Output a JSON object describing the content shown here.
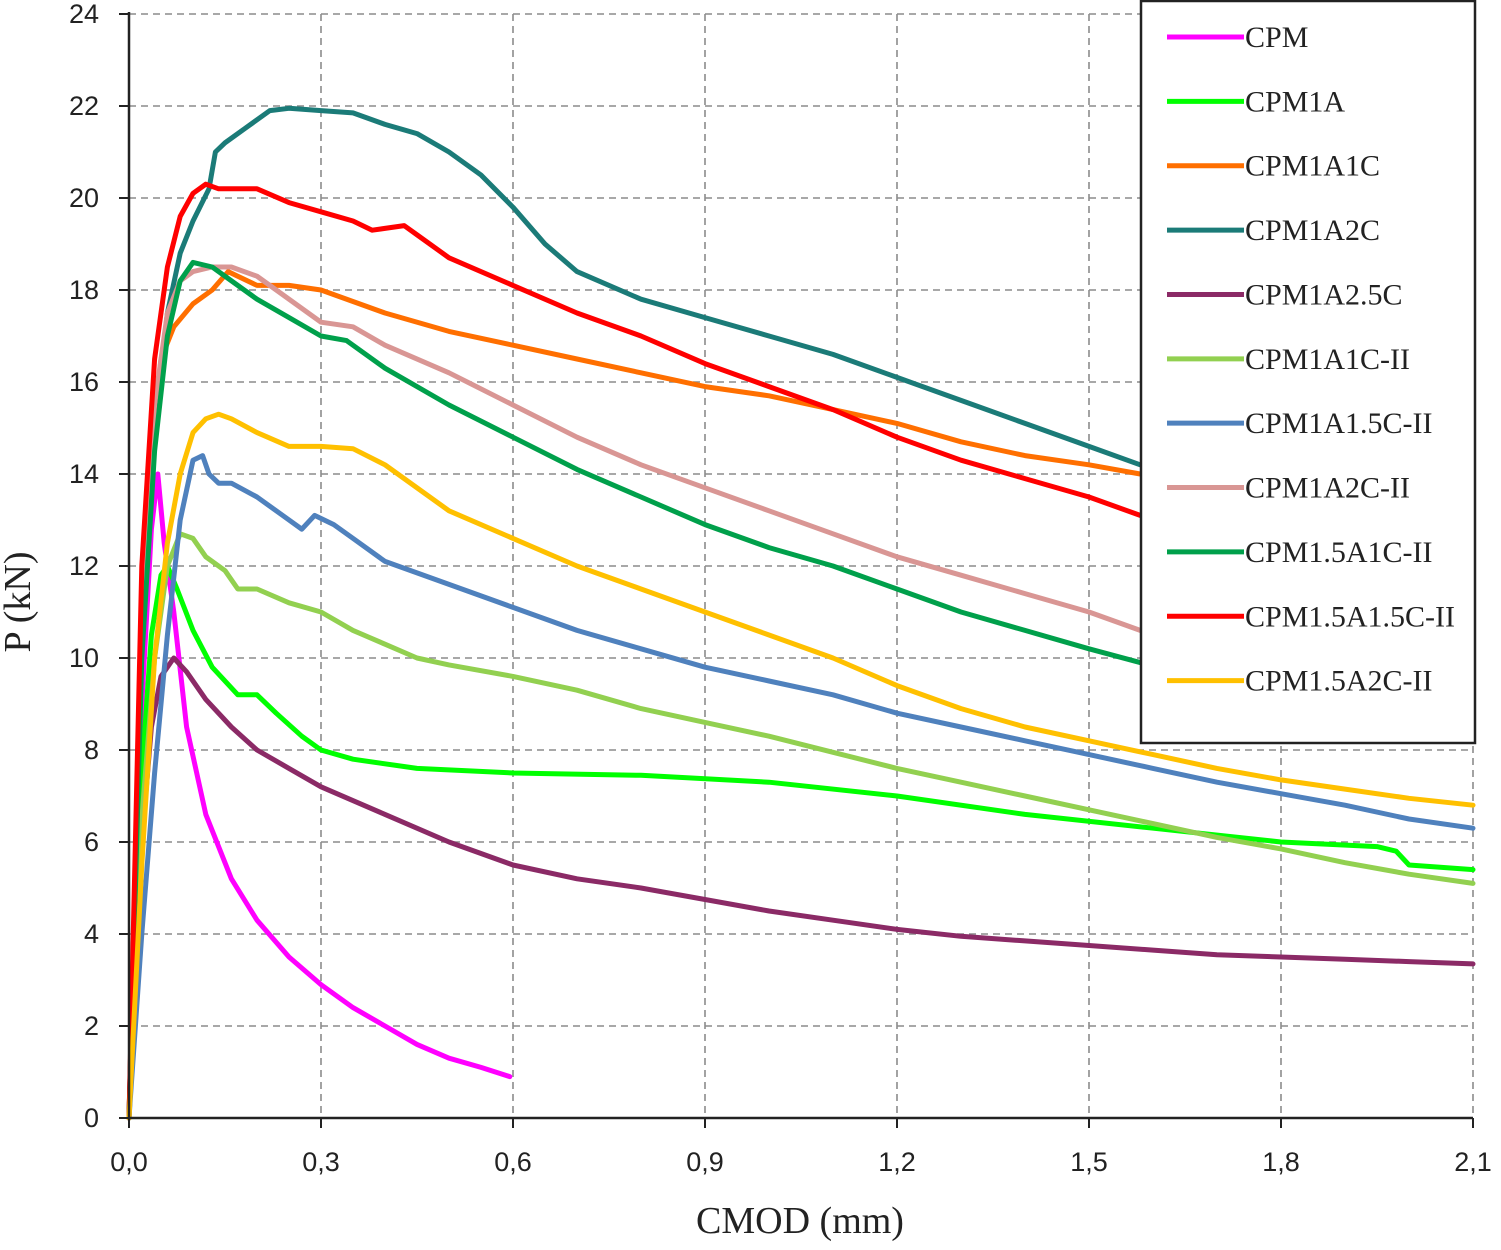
{
  "chart_data": {
    "type": "line",
    "xlabel": "CMOD  (mm)",
    "ylabel": "P (kN)",
    "xlim": [
      0,
      2.1
    ],
    "ylim": [
      0,
      24
    ],
    "x_ticks": [
      "0,0",
      "0,3",
      "0,6",
      "0,9",
      "1,2",
      "1,5",
      "1,8",
      "2,1"
    ],
    "x_tick_values": [
      0,
      0.3,
      0.6,
      0.9,
      1.2,
      1.5,
      1.8,
      2.1
    ],
    "y_ticks": [
      "0",
      "2",
      "4",
      "6",
      "8",
      "10",
      "12",
      "14",
      "16",
      "18",
      "20",
      "22",
      "24"
    ],
    "y_tick_values": [
      0,
      2,
      4,
      6,
      8,
      10,
      12,
      14,
      16,
      18,
      20,
      22,
      24
    ],
    "grid": true,
    "legend_position": "top-right",
    "series": [
      {
        "name": "CPM",
        "color": "#ff00ff",
        "points": [
          [
            0,
            0
          ],
          [
            0.02,
            9
          ],
          [
            0.035,
            12.8
          ],
          [
            0.045,
            14
          ],
          [
            0.055,
            12.5
          ],
          [
            0.07,
            11
          ],
          [
            0.09,
            8.5
          ],
          [
            0.12,
            6.6
          ],
          [
            0.16,
            5.2
          ],
          [
            0.2,
            4.3
          ],
          [
            0.25,
            3.5
          ],
          [
            0.3,
            2.9
          ],
          [
            0.35,
            2.4
          ],
          [
            0.4,
            2
          ],
          [
            0.45,
            1.6
          ],
          [
            0.5,
            1.3
          ],
          [
            0.55,
            1.1
          ],
          [
            0.595,
            0.9
          ]
        ]
      },
      {
        "name": "CPM1A",
        "color": "#00ff00",
        "points": [
          [
            0,
            0
          ],
          [
            0.02,
            7.5
          ],
          [
            0.035,
            10.5
          ],
          [
            0.05,
            11.8
          ],
          [
            0.06,
            12
          ],
          [
            0.075,
            11.5
          ],
          [
            0.1,
            10.6
          ],
          [
            0.13,
            9.8
          ],
          [
            0.17,
            9.2
          ],
          [
            0.2,
            9.2
          ],
          [
            0.23,
            8.8
          ],
          [
            0.27,
            8.3
          ],
          [
            0.3,
            8
          ],
          [
            0.35,
            7.8
          ],
          [
            0.45,
            7.6
          ],
          [
            0.6,
            7.5
          ],
          [
            0.8,
            7.45
          ],
          [
            1.0,
            7.3
          ],
          [
            1.2,
            7
          ],
          [
            1.4,
            6.6
          ],
          [
            1.6,
            6.3
          ],
          [
            1.8,
            6
          ],
          [
            1.95,
            5.9
          ],
          [
            1.98,
            5.8
          ],
          [
            2.0,
            5.5
          ],
          [
            2.1,
            5.4
          ]
        ]
      },
      {
        "name": "CPM1A1C",
        "color": "#ff6f00",
        "points": [
          [
            0,
            0
          ],
          [
            0.02,
            11
          ],
          [
            0.035,
            14.5
          ],
          [
            0.05,
            16.5
          ],
          [
            0.07,
            17.2
          ],
          [
            0.1,
            17.7
          ],
          [
            0.13,
            18
          ],
          [
            0.155,
            18.4
          ],
          [
            0.17,
            18.3
          ],
          [
            0.2,
            18.1
          ],
          [
            0.25,
            18.1
          ],
          [
            0.3,
            18
          ],
          [
            0.4,
            17.5
          ],
          [
            0.5,
            17.1
          ],
          [
            0.6,
            16.8
          ],
          [
            0.7,
            16.5
          ],
          [
            0.8,
            16.2
          ],
          [
            0.9,
            15.9
          ],
          [
            1.0,
            15.7
          ],
          [
            1.1,
            15.4
          ],
          [
            1.2,
            15.1
          ],
          [
            1.3,
            14.7
          ],
          [
            1.4,
            14.4
          ],
          [
            1.5,
            14.2
          ],
          [
            1.58,
            14
          ]
        ]
      },
      {
        "name": "CPM1A2C",
        "color": "#1b7b78",
        "points": [
          [
            0,
            0
          ],
          [
            0.02,
            11
          ],
          [
            0.04,
            15
          ],
          [
            0.06,
            17.5
          ],
          [
            0.08,
            18.8
          ],
          [
            0.1,
            19.5
          ],
          [
            0.125,
            20.2
          ],
          [
            0.135,
            21
          ],
          [
            0.15,
            21.2
          ],
          [
            0.18,
            21.5
          ],
          [
            0.22,
            21.9
          ],
          [
            0.25,
            21.95
          ],
          [
            0.3,
            21.9
          ],
          [
            0.35,
            21.85
          ],
          [
            0.4,
            21.6
          ],
          [
            0.45,
            21.4
          ],
          [
            0.5,
            21
          ],
          [
            0.55,
            20.5
          ],
          [
            0.6,
            19.8
          ],
          [
            0.65,
            19
          ],
          [
            0.7,
            18.4
          ],
          [
            0.8,
            17.8
          ],
          [
            0.9,
            17.4
          ],
          [
            1.0,
            17
          ],
          [
            1.1,
            16.6
          ],
          [
            1.2,
            16.1
          ],
          [
            1.3,
            15.6
          ],
          [
            1.4,
            15.1
          ],
          [
            1.5,
            14.6
          ],
          [
            1.58,
            14.2
          ]
        ]
      },
      {
        "name": "CPM1A2.5C",
        "color": "#8b2a66",
        "points": [
          [
            0,
            0
          ],
          [
            0.02,
            6
          ],
          [
            0.035,
            8.5
          ],
          [
            0.05,
            9.6
          ],
          [
            0.07,
            10
          ],
          [
            0.09,
            9.7
          ],
          [
            0.12,
            9.1
          ],
          [
            0.16,
            8.5
          ],
          [
            0.2,
            8
          ],
          [
            0.25,
            7.6
          ],
          [
            0.3,
            7.2
          ],
          [
            0.4,
            6.6
          ],
          [
            0.5,
            6
          ],
          [
            0.6,
            5.5
          ],
          [
            0.7,
            5.2
          ],
          [
            0.8,
            5
          ],
          [
            0.9,
            4.75
          ],
          [
            1.0,
            4.5
          ],
          [
            1.1,
            4.3
          ],
          [
            1.2,
            4.1
          ],
          [
            1.3,
            3.95
          ],
          [
            1.4,
            3.85
          ],
          [
            1.5,
            3.75
          ],
          [
            1.6,
            3.65
          ],
          [
            1.7,
            3.55
          ],
          [
            1.8,
            3.5
          ],
          [
            1.9,
            3.45
          ],
          [
            2.0,
            3.4
          ],
          [
            2.1,
            3.35
          ]
        ]
      },
      {
        "name": "CPM1A1C-II",
        "color": "#92d050",
        "points": [
          [
            0,
            0
          ],
          [
            0.02,
            6.5
          ],
          [
            0.04,
            10
          ],
          [
            0.06,
            12
          ],
          [
            0.08,
            12.7
          ],
          [
            0.1,
            12.6
          ],
          [
            0.12,
            12.2
          ],
          [
            0.15,
            11.9
          ],
          [
            0.17,
            11.5
          ],
          [
            0.2,
            11.5
          ],
          [
            0.25,
            11.2
          ],
          [
            0.3,
            11
          ],
          [
            0.35,
            10.6
          ],
          [
            0.4,
            10.3
          ],
          [
            0.45,
            10
          ],
          [
            0.5,
            9.85
          ],
          [
            0.6,
            9.6
          ],
          [
            0.7,
            9.3
          ],
          [
            0.8,
            8.9
          ],
          [
            0.9,
            8.6
          ],
          [
            1.0,
            8.3
          ],
          [
            1.1,
            7.95
          ],
          [
            1.2,
            7.6
          ],
          [
            1.3,
            7.3
          ],
          [
            1.4,
            7
          ],
          [
            1.5,
            6.7
          ],
          [
            1.6,
            6.4
          ],
          [
            1.7,
            6.1
          ],
          [
            1.8,
            5.85
          ],
          [
            1.9,
            5.55
          ],
          [
            2.0,
            5.3
          ],
          [
            2.1,
            5.1
          ]
        ]
      },
      {
        "name": "CPM1A1.5C-II",
        "color": "#4f81bd",
        "points": [
          [
            0,
            0
          ],
          [
            0.02,
            4
          ],
          [
            0.04,
            7.5
          ],
          [
            0.06,
            10.5
          ],
          [
            0.08,
            13
          ],
          [
            0.1,
            14.3
          ],
          [
            0.115,
            14.4
          ],
          [
            0.125,
            14
          ],
          [
            0.14,
            13.8
          ],
          [
            0.16,
            13.8
          ],
          [
            0.2,
            13.5
          ],
          [
            0.24,
            13.1
          ],
          [
            0.27,
            12.8
          ],
          [
            0.29,
            13.1
          ],
          [
            0.32,
            12.9
          ],
          [
            0.35,
            12.6
          ],
          [
            0.4,
            12.1
          ],
          [
            0.5,
            11.6
          ],
          [
            0.6,
            11.1
          ],
          [
            0.7,
            10.6
          ],
          [
            0.8,
            10.2
          ],
          [
            0.9,
            9.8
          ],
          [
            1.0,
            9.5
          ],
          [
            1.1,
            9.2
          ],
          [
            1.2,
            8.8
          ],
          [
            1.3,
            8.5
          ],
          [
            1.4,
            8.2
          ],
          [
            1.5,
            7.9
          ],
          [
            1.6,
            7.6
          ],
          [
            1.7,
            7.3
          ],
          [
            1.8,
            7.05
          ],
          [
            1.9,
            6.8
          ],
          [
            2.0,
            6.5
          ],
          [
            2.1,
            6.3
          ]
        ]
      },
      {
        "name": "CPM1A2C-II",
        "color": "#d99694",
        "points": [
          [
            0,
            0
          ],
          [
            0.02,
            11
          ],
          [
            0.04,
            15.5
          ],
          [
            0.06,
            17.5
          ],
          [
            0.08,
            18.2
          ],
          [
            0.1,
            18.4
          ],
          [
            0.13,
            18.5
          ],
          [
            0.16,
            18.5
          ],
          [
            0.2,
            18.3
          ],
          [
            0.25,
            17.8
          ],
          [
            0.3,
            17.3
          ],
          [
            0.35,
            17.2
          ],
          [
            0.4,
            16.8
          ],
          [
            0.5,
            16.2
          ],
          [
            0.6,
            15.5
          ],
          [
            0.7,
            14.8
          ],
          [
            0.8,
            14.2
          ],
          [
            0.9,
            13.7
          ],
          [
            1.0,
            13.2
          ],
          [
            1.1,
            12.7
          ],
          [
            1.2,
            12.2
          ],
          [
            1.3,
            11.8
          ],
          [
            1.4,
            11.4
          ],
          [
            1.5,
            11
          ],
          [
            1.58,
            10.6
          ]
        ]
      },
      {
        "name": "CPM1.5A1C-II",
        "color": "#00a04b",
        "points": [
          [
            0,
            0
          ],
          [
            0.02,
            10
          ],
          [
            0.04,
            14.5
          ],
          [
            0.06,
            17
          ],
          [
            0.08,
            18.2
          ],
          [
            0.1,
            18.6
          ],
          [
            0.13,
            18.5
          ],
          [
            0.16,
            18.2
          ],
          [
            0.2,
            17.8
          ],
          [
            0.25,
            17.4
          ],
          [
            0.3,
            17
          ],
          [
            0.34,
            16.9
          ],
          [
            0.4,
            16.3
          ],
          [
            0.5,
            15.5
          ],
          [
            0.6,
            14.8
          ],
          [
            0.7,
            14.1
          ],
          [
            0.8,
            13.5
          ],
          [
            0.9,
            12.9
          ],
          [
            1.0,
            12.4
          ],
          [
            1.1,
            12
          ],
          [
            1.2,
            11.5
          ],
          [
            1.3,
            11
          ],
          [
            1.4,
            10.6
          ],
          [
            1.5,
            10.2
          ],
          [
            1.58,
            9.9
          ]
        ]
      },
      {
        "name": "CPM1.5A1.5C-II",
        "color": "#ff0000",
        "points": [
          [
            0,
            0
          ],
          [
            0.02,
            12
          ],
          [
            0.04,
            16.5
          ],
          [
            0.06,
            18.5
          ],
          [
            0.08,
            19.6
          ],
          [
            0.1,
            20.1
          ],
          [
            0.12,
            20.3
          ],
          [
            0.14,
            20.2
          ],
          [
            0.16,
            20.2
          ],
          [
            0.2,
            20.2
          ],
          [
            0.25,
            19.9
          ],
          [
            0.3,
            19.7
          ],
          [
            0.35,
            19.5
          ],
          [
            0.38,
            19.3
          ],
          [
            0.43,
            19.4
          ],
          [
            0.45,
            19.2
          ],
          [
            0.5,
            18.7
          ],
          [
            0.6,
            18.1
          ],
          [
            0.7,
            17.5
          ],
          [
            0.8,
            17
          ],
          [
            0.9,
            16.4
          ],
          [
            1.0,
            15.9
          ],
          [
            1.1,
            15.4
          ],
          [
            1.2,
            14.8
          ],
          [
            1.3,
            14.3
          ],
          [
            1.4,
            13.9
          ],
          [
            1.5,
            13.5
          ],
          [
            1.58,
            13.1
          ]
        ]
      },
      {
        "name": "CPM1.5A2C-II",
        "color": "#ffc000",
        "points": [
          [
            0,
            0
          ],
          [
            0.02,
            5.5
          ],
          [
            0.04,
            10
          ],
          [
            0.06,
            12.5
          ],
          [
            0.08,
            14
          ],
          [
            0.1,
            14.9
          ],
          [
            0.12,
            15.2
          ],
          [
            0.14,
            15.3
          ],
          [
            0.16,
            15.2
          ],
          [
            0.2,
            14.9
          ],
          [
            0.25,
            14.6
          ],
          [
            0.3,
            14.6
          ],
          [
            0.35,
            14.55
          ],
          [
            0.4,
            14.2
          ],
          [
            0.45,
            13.7
          ],
          [
            0.5,
            13.2
          ],
          [
            0.6,
            12.6
          ],
          [
            0.7,
            12
          ],
          [
            0.8,
            11.5
          ],
          [
            0.9,
            11
          ],
          [
            1.0,
            10.5
          ],
          [
            1.1,
            10
          ],
          [
            1.2,
            9.4
          ],
          [
            1.3,
            8.9
          ],
          [
            1.4,
            8.5
          ],
          [
            1.5,
            8.2
          ],
          [
            1.6,
            7.9
          ],
          [
            1.7,
            7.6
          ],
          [
            1.8,
            7.35
          ],
          [
            1.9,
            7.15
          ],
          [
            2.0,
            6.95
          ],
          [
            2.1,
            6.8
          ]
        ]
      }
    ]
  }
}
